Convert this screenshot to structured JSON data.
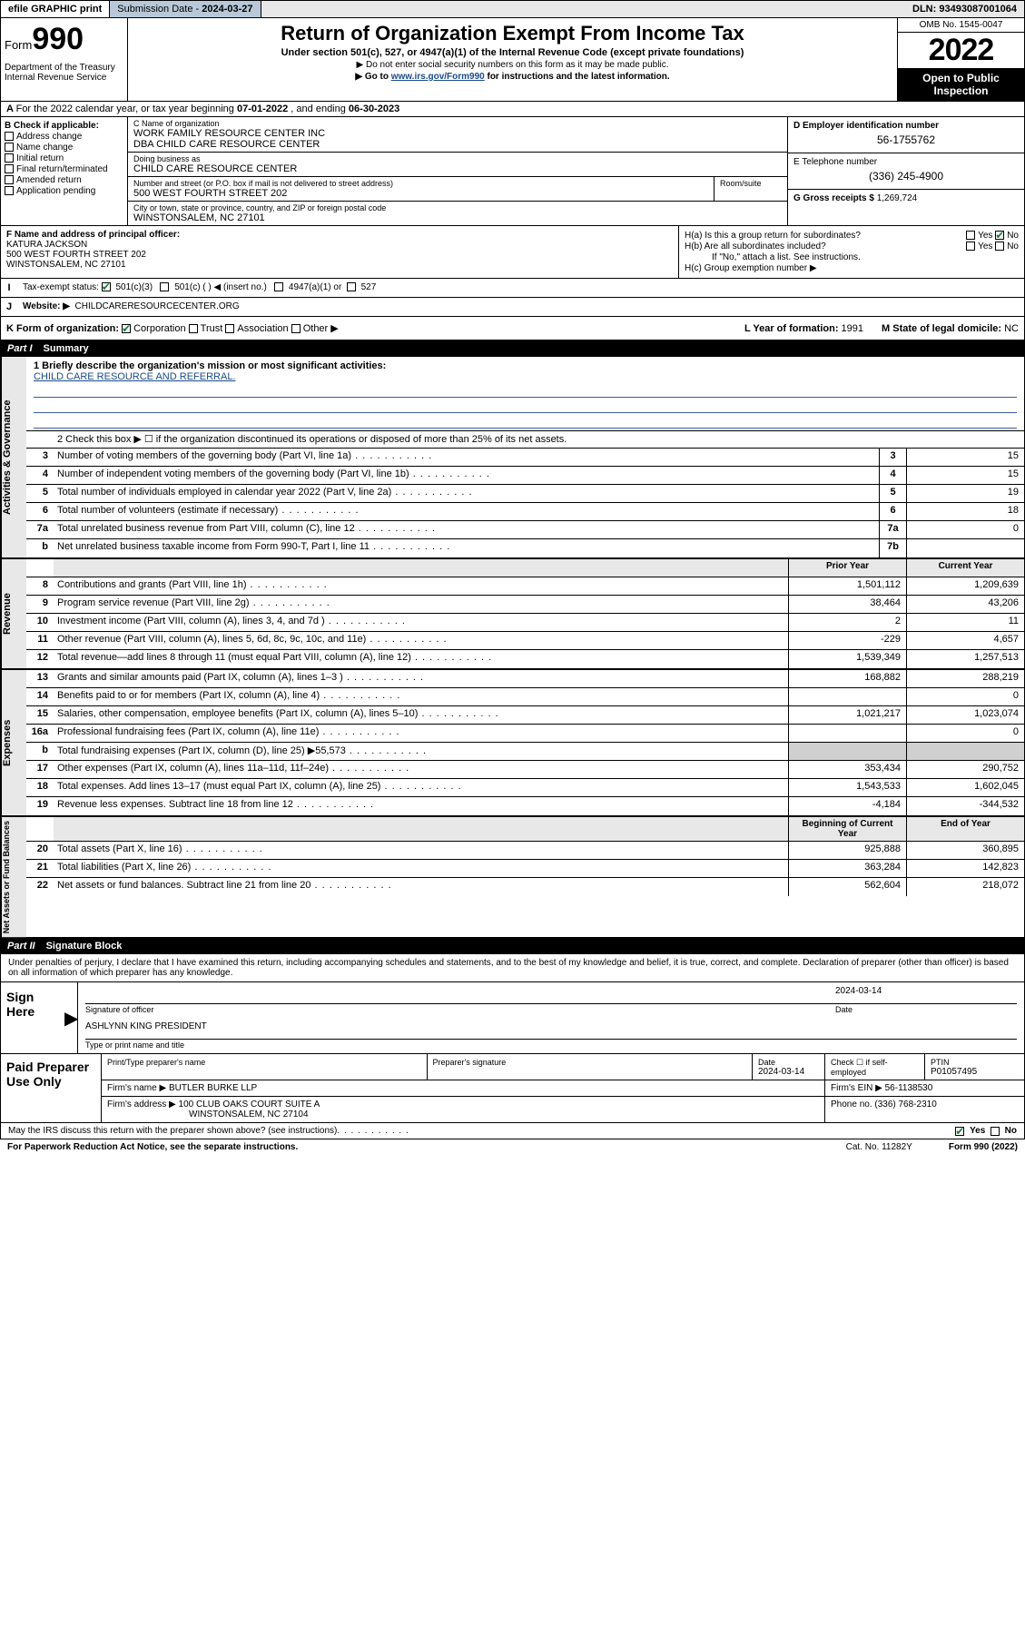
{
  "top": {
    "efile": "efile GRAPHIC print",
    "subdate_label": "Submission Date - ",
    "subdate": "2024-03-27",
    "dln_label": "DLN: ",
    "dln": "93493087001064"
  },
  "header": {
    "form_label": "Form",
    "form_num": "990",
    "title": "Return of Organization Exempt From Income Tax",
    "sub1": "Under section 501(c), 527, or 4947(a)(1) of the Internal Revenue Code (except private foundations)",
    "sub2": "▶ Do not enter social security numbers on this form as it may be made public.",
    "sub3_pre": "▶ Go to ",
    "sub3_link": "www.irs.gov/Form990",
    "sub3_post": " for instructions and the latest information.",
    "dept": "Department of the Treasury\nInternal Revenue Service",
    "omb": "OMB No. 1545-0047",
    "year": "2022",
    "open": "Open to Public Inspection"
  },
  "rowA": {
    "text_pre": "For the 2022 calendar year, or tax year beginning ",
    "begin": "07-01-2022",
    "mid": " , and ending ",
    "end": "06-30-2023"
  },
  "B": {
    "label": "B Check if applicable:",
    "items": [
      "Address change",
      "Name change",
      "Initial return",
      "Final return/terminated",
      "Amended return",
      "Application pending"
    ]
  },
  "C": {
    "name_lbl": "C Name of organization",
    "name1": "WORK FAMILY RESOURCE CENTER INC",
    "name2": "DBA CHILD CARE RESOURCE CENTER",
    "dba_lbl": "Doing business as",
    "dba": "CHILD CARE RESOURCE CENTER",
    "addr_lbl": "Number and street (or P.O. box if mail is not delivered to street address)",
    "addr": "500 WEST FOURTH STREET 202",
    "room_lbl": "Room/suite",
    "city_lbl": "City or town, state or province, country, and ZIP or foreign postal code",
    "city": "WINSTONSALEM, NC  27101"
  },
  "D": {
    "lbl": "D Employer identification number",
    "val": "56-1755762"
  },
  "E": {
    "lbl": "E Telephone number",
    "val": "(336) 245-4900"
  },
  "G": {
    "lbl": "G Gross receipts $ ",
    "val": "1,269,724"
  },
  "F": {
    "lbl": "F Name and address of principal officer:",
    "name": "KATURA JACKSON",
    "addr1": "500 WEST FOURTH STREET 202",
    "addr2": "WINSTONSALEM, NC  27101"
  },
  "H": {
    "a": "H(a)  Is this a group return for subordinates?",
    "a_yes": "Yes",
    "a_no": "No",
    "b": "H(b)  Are all subordinates included?",
    "b_yes": "Yes",
    "b_no": "No",
    "b_note": "If \"No,\" attach a list. See instructions.",
    "c": "H(c)  Group exemption number ▶"
  },
  "I": {
    "lbl": "Tax-exempt status:",
    "opt1": "501(c)(3)",
    "opt2": "501(c) (  ) ◀ (insert no.)",
    "opt3": "4947(a)(1) or",
    "opt4": "527"
  },
  "J": {
    "lbl": "Website: ▶",
    "val": "CHILDCARERESOURCECENTER.ORG"
  },
  "K": {
    "lbl": "K Form of organization:",
    "opts": [
      "Corporation",
      "Trust",
      "Association",
      "Other ▶"
    ],
    "L": "L Year of formation: ",
    "Lval": "1991",
    "M": "M State of legal domicile: ",
    "Mval": "NC"
  },
  "partI": {
    "num": "Part I",
    "title": "Summary"
  },
  "summary": {
    "brief_lbl": "1  Briefly describe the organization's mission or most significant activities:",
    "brief_val": "CHILD CARE RESOURCE AND REFERRAL.",
    "line2": "2   Check this box ▶ ☐  if the organization discontinued its operations or disposed of more than 25% of its net assets.",
    "tabs": {
      "gov": "Activities & Governance",
      "rev": "Revenue",
      "exp": "Expenses",
      "net": "Net Assets or Fund Balances"
    },
    "prior_hdr": "Prior Year",
    "curr_hdr": "Current Year",
    "begin_hdr": "Beginning of Current Year",
    "end_hdr": "End of Year",
    "rows_gov": [
      {
        "n": "3",
        "d": "Number of voting members of the governing body (Part VI, line 1a)",
        "cn": "3",
        "v": "15"
      },
      {
        "n": "4",
        "d": "Number of independent voting members of the governing body (Part VI, line 1b)",
        "cn": "4",
        "v": "15"
      },
      {
        "n": "5",
        "d": "Total number of individuals employed in calendar year 2022 (Part V, line 2a)",
        "cn": "5",
        "v": "19"
      },
      {
        "n": "6",
        "d": "Total number of volunteers (estimate if necessary)",
        "cn": "6",
        "v": "18"
      },
      {
        "n": "7a",
        "d": "Total unrelated business revenue from Part VIII, column (C), line 12",
        "cn": "7a",
        "v": "0"
      },
      {
        "n": "b",
        "d": "Net unrelated business taxable income from Form 990-T, Part I, line 11",
        "cn": "7b",
        "v": ""
      }
    ],
    "rows_rev": [
      {
        "n": "8",
        "d": "Contributions and grants (Part VIII, line 1h)",
        "p": "1,501,112",
        "c": "1,209,639"
      },
      {
        "n": "9",
        "d": "Program service revenue (Part VIII, line 2g)",
        "p": "38,464",
        "c": "43,206"
      },
      {
        "n": "10",
        "d": "Investment income (Part VIII, column (A), lines 3, 4, and 7d )",
        "p": "2",
        "c": "11"
      },
      {
        "n": "11",
        "d": "Other revenue (Part VIII, column (A), lines 5, 6d, 8c, 9c, 10c, and 11e)",
        "p": "-229",
        "c": "4,657"
      },
      {
        "n": "12",
        "d": "Total revenue—add lines 8 through 11 (must equal Part VIII, column (A), line 12)",
        "p": "1,539,349",
        "c": "1,257,513"
      }
    ],
    "rows_exp": [
      {
        "n": "13",
        "d": "Grants and similar amounts paid (Part IX, column (A), lines 1–3 )",
        "p": "168,882",
        "c": "288,219"
      },
      {
        "n": "14",
        "d": "Benefits paid to or for members (Part IX, column (A), line 4)",
        "p": "",
        "c": "0"
      },
      {
        "n": "15",
        "d": "Salaries, other compensation, employee benefits (Part IX, column (A), lines 5–10)",
        "p": "1,021,217",
        "c": "1,023,074"
      },
      {
        "n": "16a",
        "d": "Professional fundraising fees (Part IX, column (A), line 11e)",
        "p": "",
        "c": "0"
      },
      {
        "n": "b",
        "d": "Total fundraising expenses (Part IX, column (D), line 25) ▶55,573",
        "p": "—shade—",
        "c": "—shade—"
      },
      {
        "n": "17",
        "d": "Other expenses (Part IX, column (A), lines 11a–11d, 11f–24e)",
        "p": "353,434",
        "c": "290,752"
      },
      {
        "n": "18",
        "d": "Total expenses. Add lines 13–17 (must equal Part IX, column (A), line 25)",
        "p": "1,543,533",
        "c": "1,602,045"
      },
      {
        "n": "19",
        "d": "Revenue less expenses. Subtract line 18 from line 12",
        "p": "-4,184",
        "c": "-344,532"
      }
    ],
    "rows_net": [
      {
        "n": "20",
        "d": "Total assets (Part X, line 16)",
        "p": "925,888",
        "c": "360,895"
      },
      {
        "n": "21",
        "d": "Total liabilities (Part X, line 26)",
        "p": "363,284",
        "c": "142,823"
      },
      {
        "n": "22",
        "d": "Net assets or fund balances. Subtract line 21 from line 20",
        "p": "562,604",
        "c": "218,072"
      }
    ]
  },
  "partII": {
    "num": "Part II",
    "title": "Signature Block"
  },
  "sig": {
    "intro": "Under penalties of perjury, I declare that I have examined this return, including accompanying schedules and statements, and to the best of my knowledge and belief, it is true, correct, and complete. Declaration of preparer (other than officer) is based on all information of which preparer has any knowledge.",
    "sign_here": "Sign Here",
    "sig_officer": "Signature of officer",
    "date_lbl": "Date",
    "date": "2024-03-14",
    "name_title": "ASHLYNN KING  PRESIDENT",
    "name_title_lbl": "Type or print name and title",
    "paid": "Paid Preparer Use Only",
    "prep_name_lbl": "Print/Type preparer's name",
    "prep_sig_lbl": "Preparer's signature",
    "prep_date_lbl": "Date",
    "prep_date": "2024-03-14",
    "check_lbl": "Check ☐ if self-employed",
    "ptin_lbl": "PTIN",
    "ptin": "P01057495",
    "firm_name_lbl": "Firm's name   ▶",
    "firm_name": "BUTLER BURKE LLP",
    "firm_ein_lbl": "Firm's EIN ▶",
    "firm_ein": "56-1138530",
    "firm_addr_lbl": "Firm's address ▶",
    "firm_addr1": "100 CLUB OAKS COURT SUITE A",
    "firm_addr2": "WINSTONSALEM, NC  27104",
    "phone_lbl": "Phone no. ",
    "phone": "(336) 768-2310"
  },
  "foot": {
    "discuss": "May the IRS discuss this return with the preparer shown above? (see instructions)",
    "yes": "Yes",
    "no": "No",
    "paperwork": "For Paperwork Reduction Act Notice, see the separate instructions.",
    "cat": "Cat. No. 11282Y",
    "formref": "Form 990 (2022)"
  }
}
